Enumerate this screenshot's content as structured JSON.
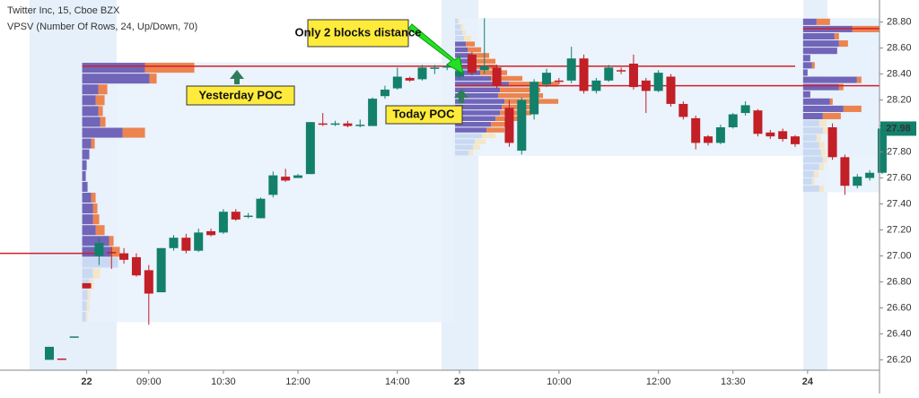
{
  "chart_data": {
    "type": "candlestick",
    "title": "Twitter Inc, 15, Cboe BZX",
    "subtitle": "VPSV (Number Of Rows, 24, Up/Down, 70)",
    "annotations": {
      "distance": "Only 2 blocks distance",
      "yesterday": "Yesterday POC",
      "today": "Today POC"
    },
    "up_color": "#12806a",
    "down_color": "#c21f26",
    "categories": [
      null,
      null,
      null,
      "22",
      null,
      null,
      null,
      null,
      "09:00",
      null,
      null,
      null,
      null,
      null,
      "10:30",
      null,
      null,
      null,
      null,
      null,
      "12:00",
      null,
      null,
      null,
      null,
      null,
      null,
      null,
      "14:00",
      null,
      null,
      null,
      null,
      "23",
      null,
      null,
      null,
      null,
      null,
      null,
      null,
      "10:00",
      null,
      null,
      null,
      null,
      null,
      null,
      null,
      "12:00",
      null,
      null,
      null,
      null,
      null,
      "13:30",
      null,
      null,
      null,
      null,
      null,
      "24",
      null,
      null,
      null,
      null,
      null,
      null
    ],
    "open": [
      26.2,
      26.21,
      26.38,
      26.79,
      27.0,
      27.03,
      27.02,
      26.99,
      26.89,
      26.72,
      27.06,
      27.14,
      27.04,
      27.19,
      27.18,
      27.34,
      27.3,
      27.29,
      27.47,
      27.61,
      27.6,
      27.63,
      28.02,
      28.01,
      28.02,
      28.0,
      28.0,
      28.23,
      28.29,
      28.37,
      28.36,
      28.44,
      28.45,
      28.38,
      28.55,
      28.43,
      28.45,
      28.14,
      27.81,
      28.09,
      28.32,
      28.35,
      28.35,
      28.52,
      28.27,
      28.35,
      28.43,
      28.48,
      28.35,
      28.27,
      28.38,
      28.17,
      28.06,
      27.92,
      27.87,
      27.99,
      28.1,
      28.12,
      27.95,
      27.96,
      27.92,
      null,
      null,
      27.99,
      27.76,
      27.54,
      27.6,
      27.64
    ],
    "high": [
      26.3,
      26.21,
      26.38,
      26.79,
      27.14,
      27.07,
      27.06,
      27.02,
      26.93,
      27.06,
      27.16,
      27.17,
      27.21,
      27.21,
      27.36,
      27.36,
      27.33,
      27.45,
      27.65,
      27.67,
      27.63,
      28.03,
      28.1,
      28.04,
      28.04,
      28.05,
      28.22,
      28.31,
      28.45,
      28.38,
      28.47,
      28.47,
      28.48,
      28.46,
      28.57,
      28.83,
      28.47,
      28.2,
      28.22,
      28.36,
      28.44,
      28.37,
      28.61,
      28.55,
      28.37,
      28.47,
      28.45,
      28.55,
      28.37,
      28.43,
      28.4,
      28.19,
      28.08,
      27.93,
      28.01,
      28.1,
      28.19,
      28.13,
      27.97,
      27.98,
      27.93,
      null,
      null,
      28.02,
      27.78,
      27.63,
      27.66,
      28.02
    ],
    "low": [
      26.2,
      26.2,
      26.38,
      26.75,
      26.93,
      26.9,
      26.94,
      26.84,
      26.47,
      26.72,
      27.04,
      27.02,
      27.03,
      27.15,
      27.17,
      27.27,
      27.29,
      27.29,
      27.45,
      27.57,
      27.6,
      27.63,
      28.0,
      28.0,
      27.99,
      27.99,
      28.0,
      28.21,
      28.28,
      28.34,
      28.35,
      28.4,
      28.43,
      28.36,
      28.39,
      28.4,
      28.29,
      27.84,
      27.78,
      28.05,
      28.3,
      28.32,
      28.33,
      28.25,
      28.25,
      28.34,
      28.4,
      28.28,
      28.1,
      28.26,
      28.15,
      28.05,
      27.82,
      27.85,
      27.86,
      27.98,
      28.08,
      27.92,
      27.9,
      27.88,
      27.84,
      null,
      null,
      27.74,
      27.47,
      27.52,
      27.58,
      27.63
    ],
    "close": [
      26.3,
      26.2,
      26.38,
      26.75,
      27.1,
      27.02,
      26.97,
      26.85,
      26.71,
      27.06,
      27.14,
      27.04,
      27.18,
      27.16,
      27.34,
      27.28,
      27.31,
      27.44,
      27.62,
      27.58,
      27.62,
      28.03,
      28.01,
      28.02,
      28.0,
      28.01,
      28.21,
      28.28,
      28.38,
      28.35,
      28.45,
      28.45,
      28.46,
      28.42,
      28.41,
      28.46,
      28.31,
      27.87,
      28.2,
      28.34,
      28.41,
      28.34,
      28.52,
      28.27,
      28.35,
      28.45,
      28.42,
      28.3,
      28.27,
      28.41,
      28.17,
      28.07,
      27.87,
      27.87,
      27.99,
      28.09,
      28.16,
      27.94,
      27.92,
      27.9,
      27.86,
      null,
      null,
      27.76,
      27.54,
      27.61,
      27.64,
      27.98
    ],
    "prior_poc": 27.02,
    "profiles": [
      {
        "start": 3,
        "end": 32,
        "top": 28.49,
        "bottom": 26.49,
        "poc": 28.46,
        "value_area_rows": [
          0,
          17
        ],
        "up": [
          70,
          75,
          18,
          15,
          18,
          20,
          45,
          10,
          8,
          5,
          4,
          6,
          10,
          12,
          12,
          15,
          30,
          32,
          40,
          12,
          8,
          6,
          5,
          4
        ],
        "down": [
          55,
          8,
          10,
          10,
          5,
          6,
          25,
          4,
          0,
          0,
          0,
          0,
          5,
          5,
          7,
          10,
          5,
          10,
          0,
          8,
          5,
          3,
          3,
          2
        ]
      },
      {
        "start": 33,
        "end": 67,
        "top": 28.83,
        "bottom": 27.77,
        "poc": 28.31,
        "value_area_rows": [
          4,
          19
        ],
        "up": [
          3,
          6,
          8,
          10,
          12,
          14,
          18,
          20,
          22,
          28,
          40,
          60,
          50,
          48,
          55,
          52,
          50,
          45,
          40,
          35,
          30,
          22,
          20,
          15
        ],
        "down": [
          2,
          3,
          4,
          8,
          10,
          15,
          20,
          25,
          25,
          30,
          35,
          55,
          45,
          50,
          60,
          40,
          35,
          30,
          25,
          20,
          15,
          12,
          8,
          5
        ]
      },
      {
        "start": 61,
        "end": 67,
        "top": 28.83,
        "bottom": 27.49,
        "poc": 28.75,
        "value_area_rows": [
          0,
          13
        ],
        "up": [
          15,
          55,
          35,
          40,
          38,
          8,
          10,
          5,
          60,
          40,
          8,
          30,
          45,
          22,
          18,
          22,
          15,
          18,
          20,
          22,
          18,
          12,
          10,
          18
        ],
        "down": [
          15,
          30,
          5,
          10,
          0,
          0,
          3,
          0,
          5,
          5,
          0,
          3,
          20,
          20,
          8,
          10,
          5,
          6,
          5,
          5,
          5,
          5,
          3,
          5
        ]
      }
    ],
    "last_price": 27.98,
    "ylim": [
      26.12,
      28.97
    ],
    "yticks": [
      {
        "value": 26.2,
        "label": "26.20"
      },
      {
        "value": 26.4,
        "label": "26.40"
      },
      {
        "value": 26.6,
        "label": "26.60"
      },
      {
        "value": 26.8,
        "label": "26.80"
      },
      {
        "value": 27.0,
        "label": "27.00"
      },
      {
        "value": 27.2,
        "label": "27.20"
      },
      {
        "value": 27.4,
        "label": "27.40"
      },
      {
        "value": 27.6,
        "label": "27.60"
      },
      {
        "value": 27.8,
        "label": "27.80"
      },
      {
        "value": 28.0,
        "label": "28.00"
      },
      {
        "value": 28.2,
        "label": "28.20"
      },
      {
        "value": 28.4,
        "label": "28.40"
      },
      {
        "value": 28.6,
        "label": "28.60"
      },
      {
        "value": 28.8,
        "label": "28.80"
      }
    ]
  }
}
